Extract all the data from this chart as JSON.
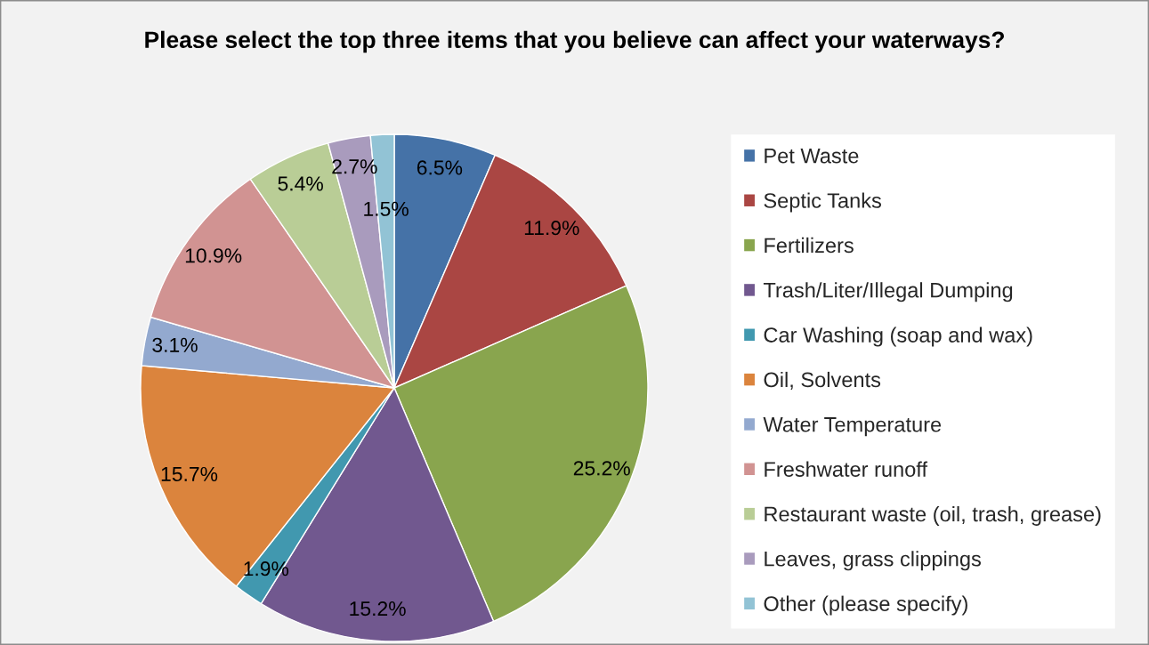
{
  "chart_data": {
    "type": "pie",
    "title": "Please select the top three items that you believe can affect your waterways?",
    "categories": [
      "Pet Waste",
      "Septic Tanks",
      "Fertilizers",
      "Trash/Liter/Illegal Dumping",
      "Car Washing (soap and wax)",
      "Oil, Solvents",
      "Water Temperature",
      "Freshwater runoff",
      "Restaurant waste (oil, trash, grease)",
      "Leaves, grass clippings",
      "Other (please specify)"
    ],
    "values": [
      6.5,
      11.9,
      25.2,
      15.2,
      1.9,
      15.7,
      3.1,
      10.9,
      5.4,
      2.7,
      1.5
    ],
    "value_labels": [
      "6.5%",
      "11.9%",
      "25.2%",
      "15.2%",
      "1.9%",
      "15.7%",
      "3.1%",
      "10.9%",
      "5.4%",
      "2.7%",
      "1.5%"
    ],
    "colors": [
      "#4572a7",
      "#aa4643",
      "#89a54e",
      "#71588f",
      "#4198af",
      "#db843d",
      "#93a9cf",
      "#d19392",
      "#b9cd96",
      "#a99bbd",
      "#92c3d5"
    ],
    "legend": "right"
  }
}
